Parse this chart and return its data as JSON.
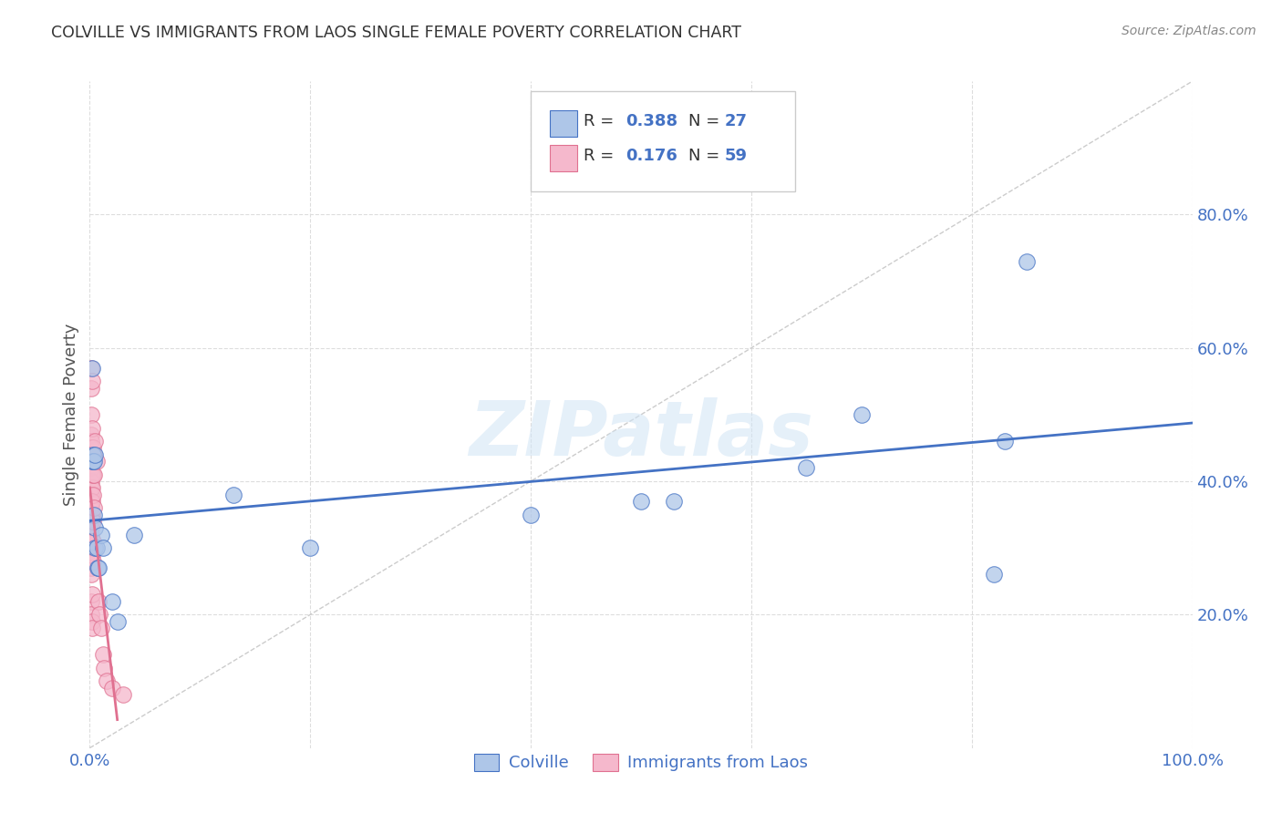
{
  "title": "COLVILLE VS IMMIGRANTS FROM LAOS SINGLE FEMALE POVERTY CORRELATION CHART",
  "source": "Source: ZipAtlas.com",
  "ylabel": "Single Female Poverty",
  "background_color": "#ffffff",
  "watermark": "ZIPatlas",
  "colville_color": "#aec6e8",
  "laos_color": "#f5b8cc",
  "colville_line_color": "#4472c4",
  "laos_line_color": "#e07090",
  "diagonal_color": "#cccccc",
  "R_colville": 0.388,
  "N_colville": 27,
  "R_laos": 0.176,
  "N_laos": 59,
  "colville_points": [
    [
      0.002,
      0.57
    ],
    [
      0.002,
      0.43
    ],
    [
      0.003,
      0.44
    ],
    [
      0.003,
      0.43
    ],
    [
      0.004,
      0.43
    ],
    [
      0.004,
      0.35
    ],
    [
      0.005,
      0.44
    ],
    [
      0.005,
      0.33
    ],
    [
      0.005,
      0.3
    ],
    [
      0.006,
      0.3
    ],
    [
      0.007,
      0.27
    ],
    [
      0.008,
      0.27
    ],
    [
      0.01,
      0.32
    ],
    [
      0.012,
      0.3
    ],
    [
      0.02,
      0.22
    ],
    [
      0.025,
      0.19
    ],
    [
      0.04,
      0.32
    ],
    [
      0.13,
      0.38
    ],
    [
      0.2,
      0.3
    ],
    [
      0.4,
      0.35
    ],
    [
      0.5,
      0.37
    ],
    [
      0.53,
      0.37
    ],
    [
      0.65,
      0.42
    ],
    [
      0.7,
      0.5
    ],
    [
      0.82,
      0.26
    ],
    [
      0.83,
      0.46
    ],
    [
      0.85,
      0.73
    ]
  ],
  "laos_points": [
    [
      0.001,
      0.57
    ],
    [
      0.001,
      0.54
    ],
    [
      0.001,
      0.5
    ],
    [
      0.001,
      0.47
    ],
    [
      0.001,
      0.46
    ],
    [
      0.001,
      0.45
    ],
    [
      0.001,
      0.43
    ],
    [
      0.001,
      0.42
    ],
    [
      0.001,
      0.41
    ],
    [
      0.001,
      0.4
    ],
    [
      0.001,
      0.39
    ],
    [
      0.001,
      0.38
    ],
    [
      0.001,
      0.37
    ],
    [
      0.001,
      0.36
    ],
    [
      0.001,
      0.35
    ],
    [
      0.001,
      0.34
    ],
    [
      0.001,
      0.33
    ],
    [
      0.001,
      0.32
    ],
    [
      0.001,
      0.31
    ],
    [
      0.001,
      0.3
    ],
    [
      0.001,
      0.29
    ],
    [
      0.001,
      0.28
    ],
    [
      0.001,
      0.27
    ],
    [
      0.001,
      0.26
    ],
    [
      0.001,
      0.22
    ],
    [
      0.001,
      0.2
    ],
    [
      0.002,
      0.55
    ],
    [
      0.002,
      0.48
    ],
    [
      0.002,
      0.44
    ],
    [
      0.002,
      0.43
    ],
    [
      0.002,
      0.41
    ],
    [
      0.002,
      0.39
    ],
    [
      0.002,
      0.37
    ],
    [
      0.002,
      0.35
    ],
    [
      0.002,
      0.31
    ],
    [
      0.002,
      0.29
    ],
    [
      0.002,
      0.23
    ],
    [
      0.002,
      0.19
    ],
    [
      0.002,
      0.18
    ],
    [
      0.003,
      0.45
    ],
    [
      0.003,
      0.44
    ],
    [
      0.003,
      0.41
    ],
    [
      0.003,
      0.38
    ],
    [
      0.003,
      0.34
    ],
    [
      0.003,
      0.31
    ],
    [
      0.003,
      0.28
    ],
    [
      0.004,
      0.44
    ],
    [
      0.004,
      0.41
    ],
    [
      0.004,
      0.36
    ],
    [
      0.005,
      0.46
    ],
    [
      0.006,
      0.43
    ],
    [
      0.008,
      0.22
    ],
    [
      0.009,
      0.2
    ],
    [
      0.01,
      0.18
    ],
    [
      0.012,
      0.14
    ],
    [
      0.013,
      0.12
    ],
    [
      0.015,
      0.1
    ],
    [
      0.02,
      0.09
    ],
    [
      0.03,
      0.08
    ]
  ]
}
